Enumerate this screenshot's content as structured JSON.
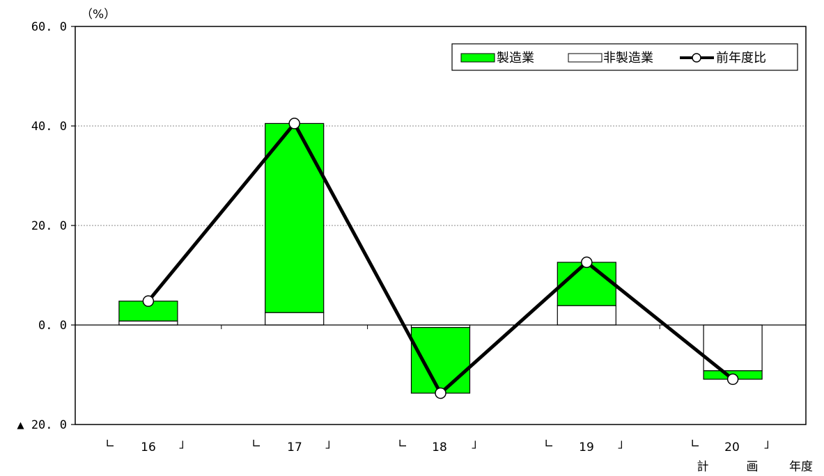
{
  "chart_data": {
    "type": "bar",
    "unit_label": "（%）",
    "y_ticks": [
      "60. 0",
      "40. 0",
      "20. 0",
      "0. 0",
      "▲ 20. 0"
    ],
    "y_tick_values": [
      60,
      40,
      20,
      0,
      -20
    ],
    "ylim": [
      -20,
      60
    ],
    "grid": true,
    "legend_position": "top-right",
    "categories": [
      "16",
      "17",
      "18",
      "19",
      "20"
    ],
    "bracket_left": "∟",
    "bracket_right": "」",
    "x_note": [
      "計",
      "画",
      "年度"
    ],
    "series": [
      {
        "name": "製造業",
        "type": "bar",
        "values": [
          4.0,
          38.0,
          -13.2,
          8.7,
          -1.7
        ],
        "color": "#00ff00"
      },
      {
        "name": "非製造業",
        "type": "bar",
        "values": [
          0.8,
          2.5,
          -0.5,
          3.9,
          -9.2
        ],
        "color": "#ffffff"
      },
      {
        "name": "前年度比",
        "type": "line",
        "values": [
          4.8,
          40.5,
          -13.7,
          12.6,
          -10.9
        ],
        "color": "#000000"
      }
    ]
  }
}
